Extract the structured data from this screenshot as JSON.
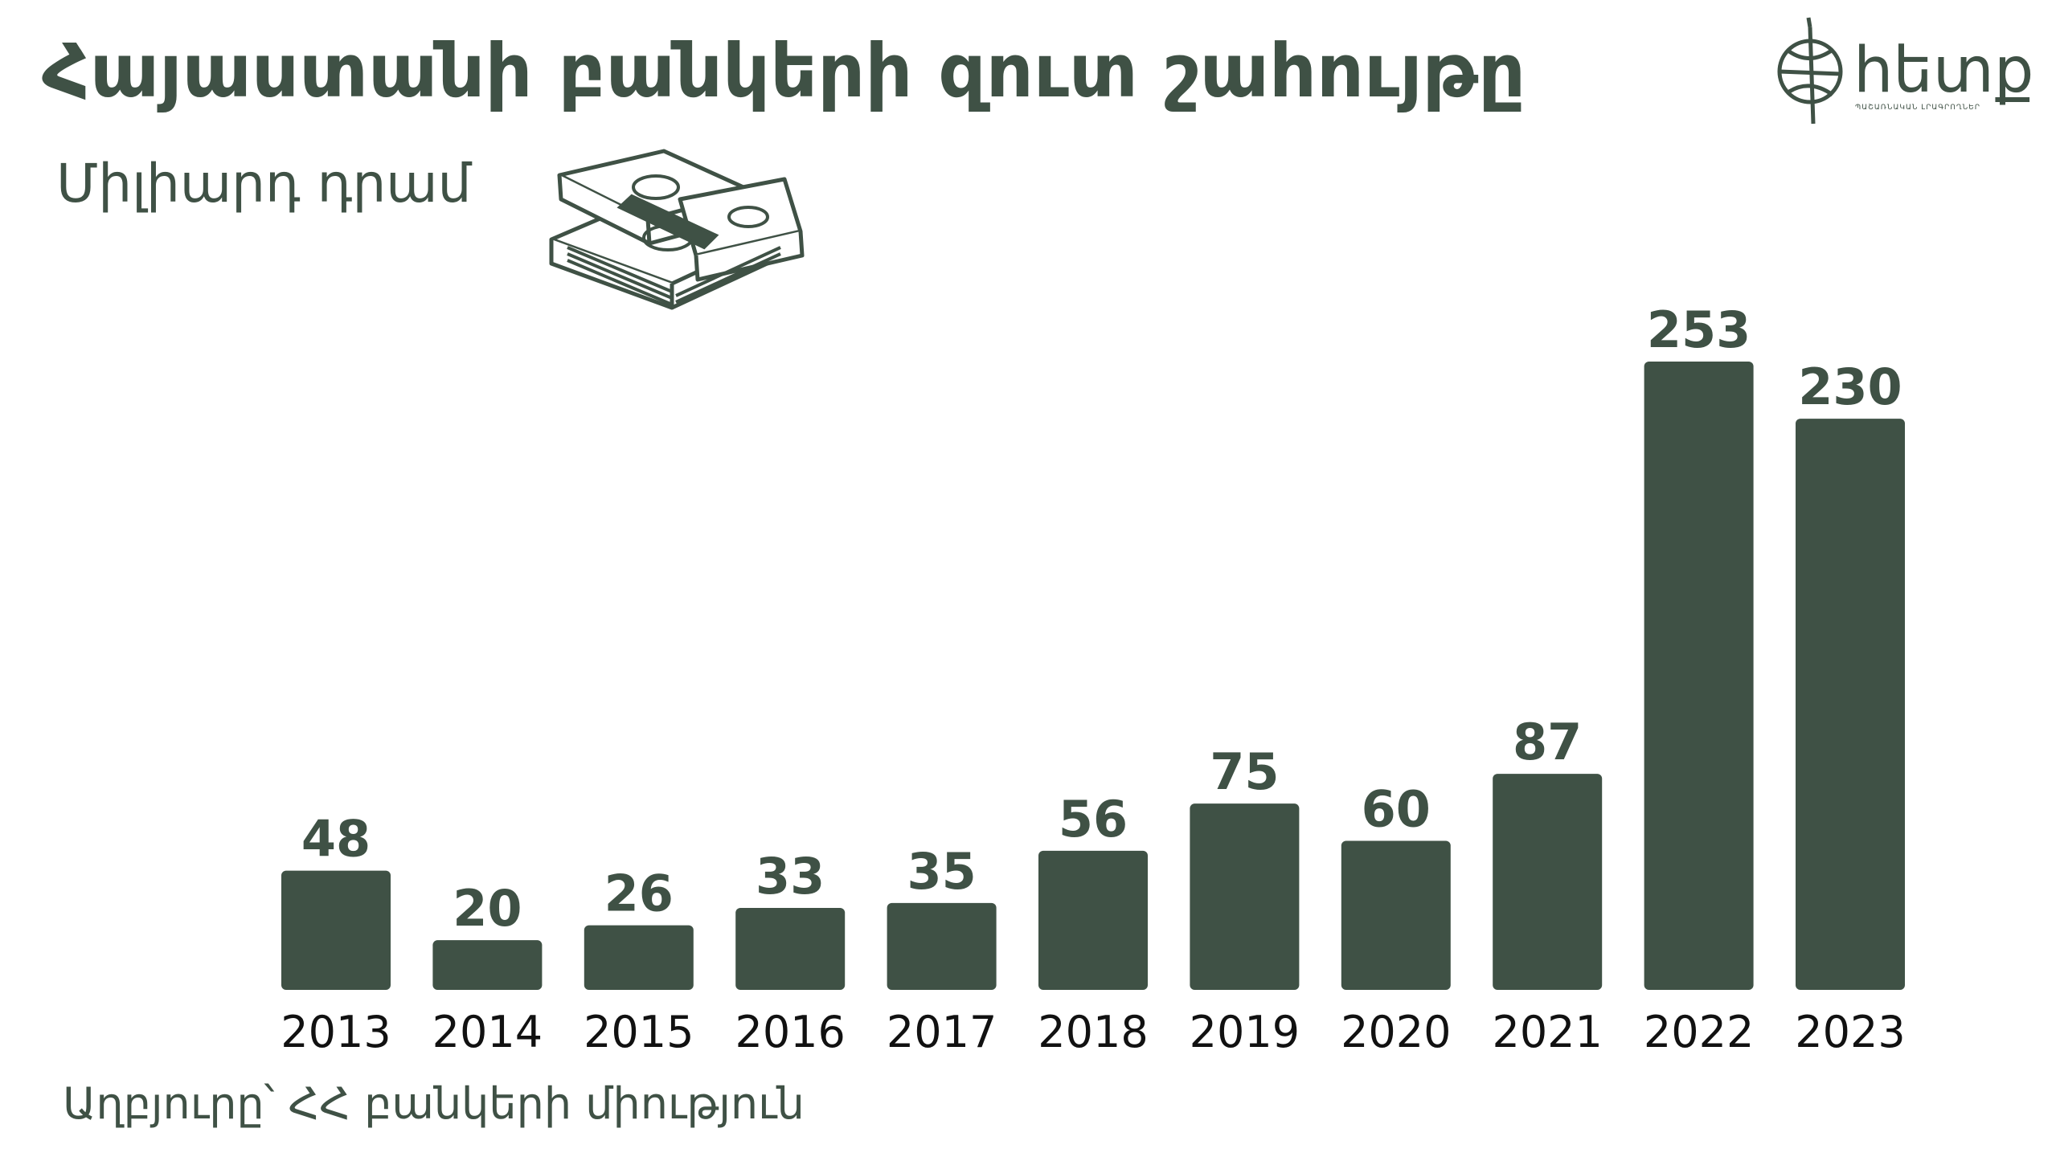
{
  "header": {
    "title": "Հայաստանի բանկերի զուտ շահույթը",
    "subtitle": "Միլիարդ դրամ"
  },
  "footer": {
    "source": "Աղբյուրը՝ ՀՀ բանկերի միություն"
  },
  "logo": {
    "text": "hետք",
    "tagline": "ՊԱՇԱՌՆԱԿԱՆ ԼՐԱԳՐՈՂՆԵՐ",
    "icon": "compass-globe-icon"
  },
  "decoration": {
    "icon": "money-stack-icon"
  },
  "colors": {
    "bar": "#3f5145",
    "text": "#3f5145",
    "axis_labels": "#111111",
    "background": "#ffffff"
  },
  "chart_data": {
    "type": "bar",
    "categories": [
      "2013",
      "2014",
      "2015",
      "2016",
      "2017",
      "2018",
      "2019",
      "2020",
      "2021",
      "2022",
      "2023"
    ],
    "values": [
      48,
      20,
      26,
      33,
      35,
      56,
      75,
      60,
      87,
      253,
      230
    ],
    "title": "Հայաստանի բանկերի զուտ շահույթը",
    "ylabel": "Միլիարդ դրամ",
    "xlabel": "",
    "ylim": [
      0,
      253
    ],
    "grid": false,
    "legend": "none",
    "data_labels": true
  }
}
